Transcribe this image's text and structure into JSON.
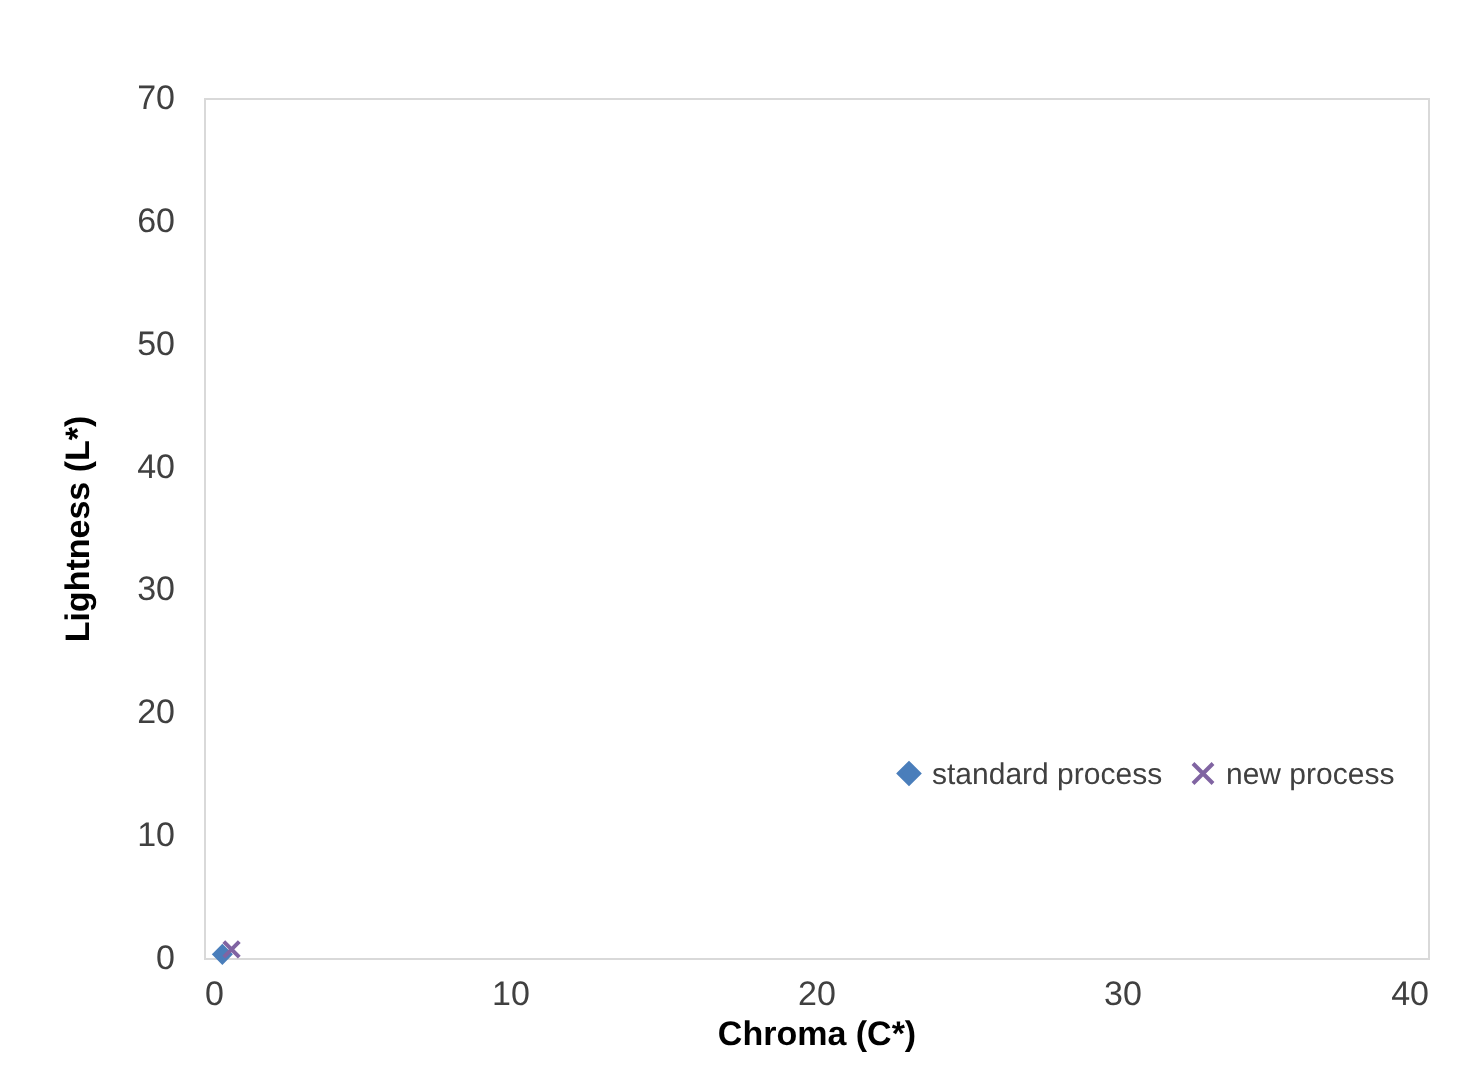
{
  "chart_data": {
    "type": "scatter",
    "xlabel": "Chroma (C*)",
    "ylabel": "Lightness (L*)",
    "xlim": [
      0,
      40
    ],
    "xticks": [
      0,
      10,
      20,
      30,
      40
    ],
    "ylim": [
      0,
      70
    ],
    "yticks": [
      0,
      10,
      20,
      30,
      40,
      50,
      60,
      70
    ],
    "grid": false,
    "legend": "right",
    "series": [
      {
        "name": "standard process",
        "color": "#4a7ebb",
        "marker": "diamond",
        "x": [
          0.6
        ],
        "values": [
          0.3
        ]
      },
      {
        "name": "new process",
        "color": "#8064a2",
        "marker": "cross",
        "x": [
          0.9
        ],
        "values": [
          0.7
        ]
      }
    ]
  }
}
